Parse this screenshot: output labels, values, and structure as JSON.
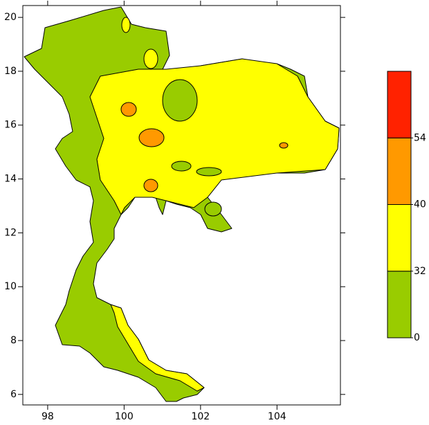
{
  "map": {
    "xlim": [
      97.35,
      105.66
    ],
    "ylim": [
      5.61,
      20.44
    ],
    "xticks": [
      98,
      100,
      102,
      104
    ],
    "yticks": [
      6,
      8,
      10,
      12,
      14,
      16,
      18,
      20
    ],
    "colorbar": {
      "levels": [
        0,
        32,
        40,
        54
      ],
      "colors": [
        "#99cc00",
        "#ffff00",
        "#ff9900",
        "#ff2200"
      ]
    }
  }
}
